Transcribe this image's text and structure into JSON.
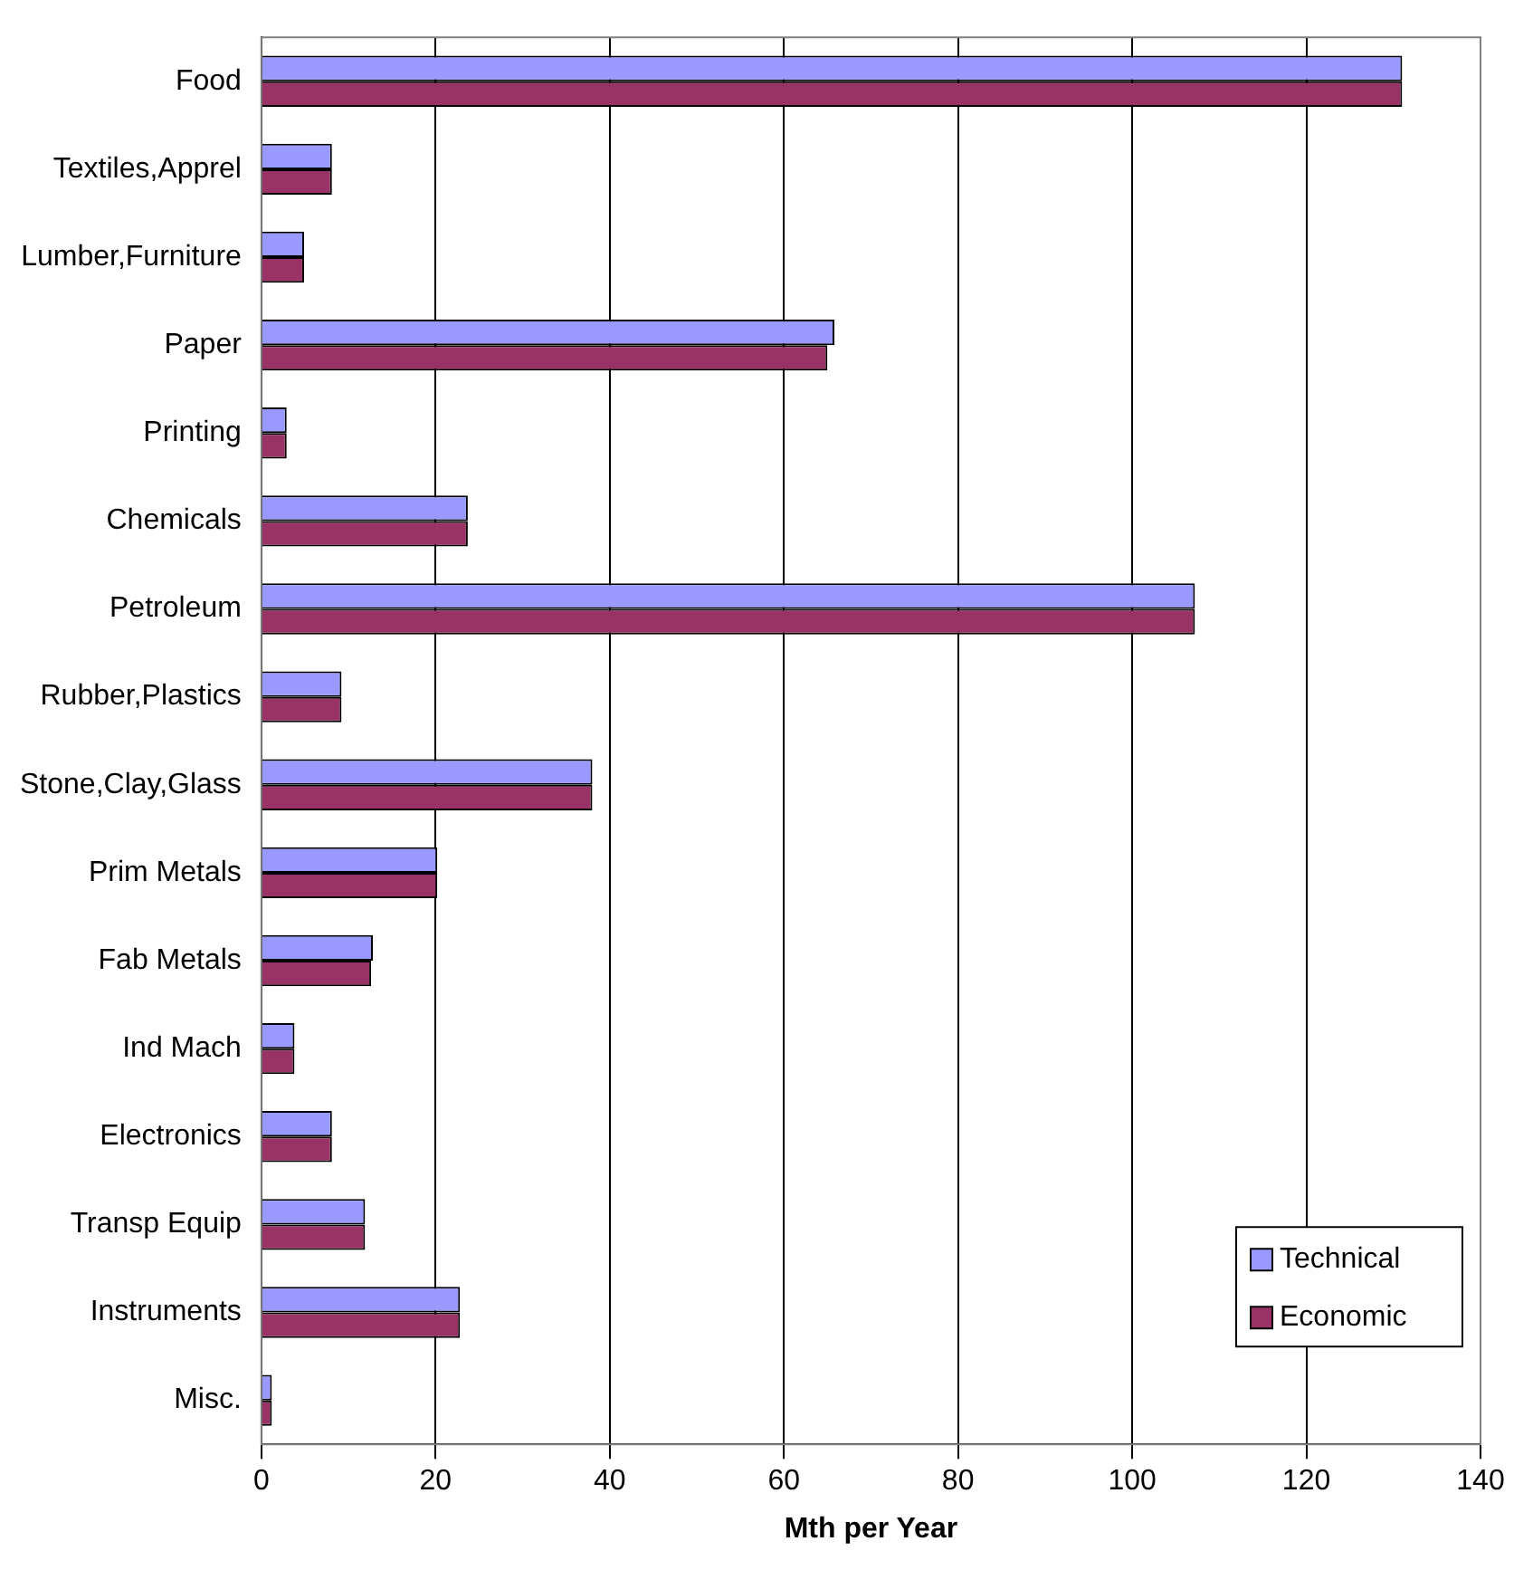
{
  "chart_data": {
    "type": "bar",
    "orientation": "horizontal",
    "xlabel": "Mth per Year",
    "categories": [
      "Food",
      "Textiles,Apprel",
      "Lumber,Furniture",
      "Paper",
      "Printing",
      "Chemicals",
      "Petroleum",
      "Rubber,Plastics",
      "Stone,Clay,Glass",
      "Prim Metals",
      "Fab Metals",
      "Ind Mach",
      "Electronics",
      "Transp Equip",
      "Instruments",
      "Misc."
    ],
    "series": [
      {
        "name": "Technical",
        "color": "#9999ff",
        "values": [
          131,
          8.1,
          4.9,
          65.8,
          2.9,
          23.7,
          107.2,
          9.2,
          38,
          20.2,
          12.8,
          3.8,
          8.1,
          11.9,
          22.8,
          1.2
        ]
      },
      {
        "name": "Economic",
        "color": "#993366",
        "values": [
          131,
          8.1,
          4.9,
          65,
          2.9,
          23.7,
          107.2,
          9.2,
          38,
          20.2,
          12.6,
          3.8,
          8.1,
          11.9,
          22.8,
          1.2
        ]
      }
    ],
    "xlim": [
      0,
      140
    ],
    "xticks": [
      0,
      20,
      40,
      60,
      80,
      100,
      120,
      140
    ],
    "grid": "x",
    "legend": "bottom right"
  }
}
